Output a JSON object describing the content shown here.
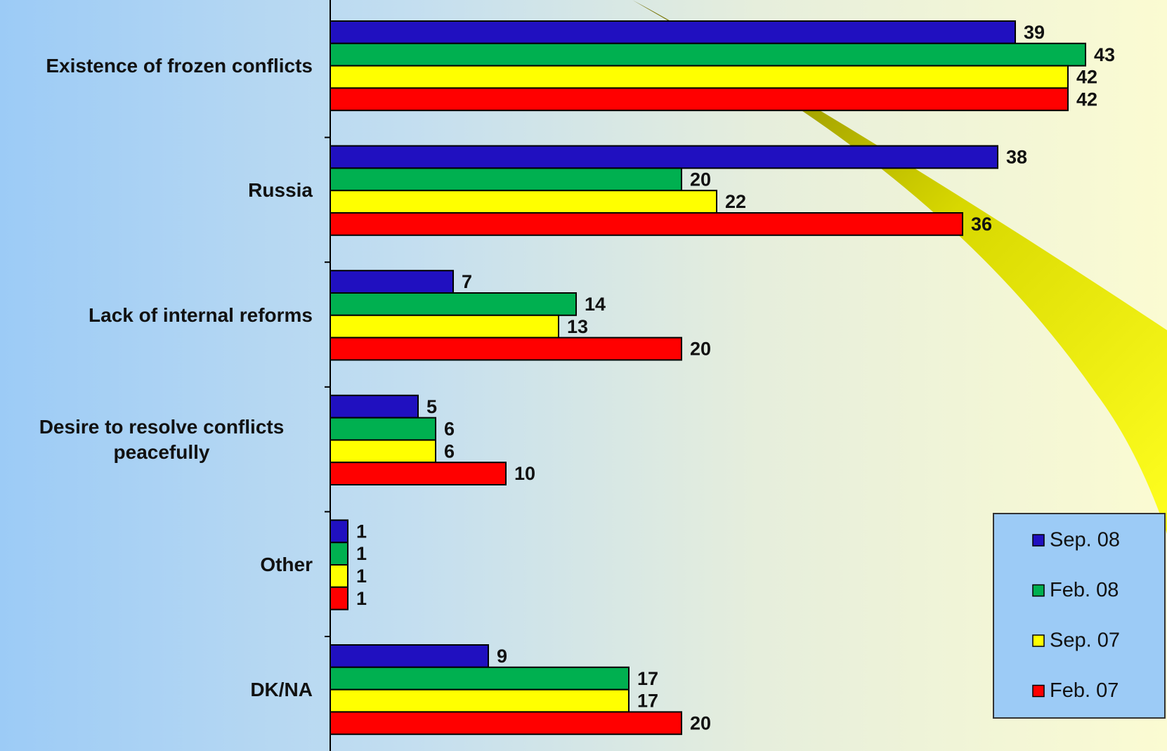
{
  "chart_data": {
    "type": "bar",
    "orientation": "horizontal",
    "categories": [
      "Existence of frozen conflicts",
      "Russia",
      "Lack of internal reforms",
      "Desire to resolve conflicts peacefully",
      "Other",
      "DK/NA"
    ],
    "series": [
      {
        "name": "Sep. 08",
        "color": "#2010c0",
        "values": [
          39,
          38,
          7,
          5,
          1,
          9
        ]
      },
      {
        "name": "Feb. 08",
        "color": "#00b050",
        "values": [
          43,
          20,
          14,
          6,
          1,
          17
        ]
      },
      {
        "name": "Sep. 07",
        "color": "#ffff00",
        "values": [
          42,
          22,
          13,
          6,
          1,
          17
        ]
      },
      {
        "name": "Feb. 07",
        "color": "#ff0000",
        "values": [
          42,
          36,
          20,
          10,
          1,
          20
        ]
      }
    ],
    "legend": "right-bottom"
  }
}
